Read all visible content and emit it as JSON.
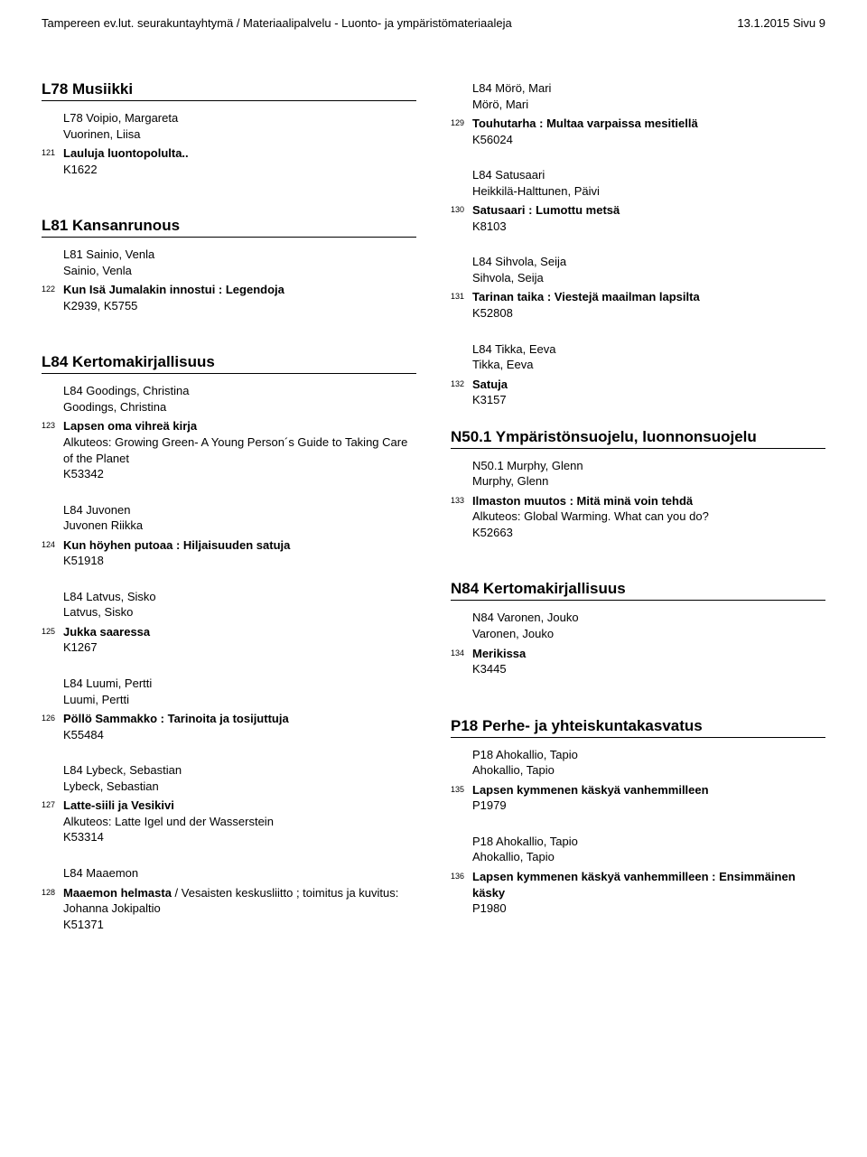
{
  "header": {
    "left": "Tampereen ev.lut. seurakuntayhtymä / Materiaalipalvelu - Luonto- ja ympäristömateriaaleja",
    "right": "13.1.2015  Sivu 9"
  },
  "left_col": [
    {
      "type": "heading",
      "text": "L78  Musiikki"
    },
    {
      "type": "lines",
      "lines": [
        "L78 Voipio, Margareta",
        "Vuorinen, Liisa"
      ]
    },
    {
      "type": "numbered",
      "num": "121",
      "title": "Lauluja luontopolulta..",
      "after": [
        "K1622"
      ]
    },
    {
      "type": "gap"
    },
    {
      "type": "heading",
      "text": "L81  Kansanrunous"
    },
    {
      "type": "lines",
      "lines": [
        "L81 Sainio, Venla",
        "Sainio, Venla"
      ]
    },
    {
      "type": "numbered",
      "num": "122",
      "title": "Kun Isä Jumalakin innostui : Legendoja",
      "after": [
        "K2939, K5755"
      ]
    },
    {
      "type": "gap"
    },
    {
      "type": "heading",
      "text": "L84  Kertomakirjallisuus"
    },
    {
      "type": "lines",
      "lines": [
        "L84 Goodings, Christina",
        "Goodings, Christina"
      ]
    },
    {
      "type": "numbered",
      "num": "123",
      "title": "Lapsen oma vihreä kirja",
      "after": [
        "Alkuteos: Growing Green- A Young Person´s Guide to Taking Care of the Planet",
        "K53342"
      ]
    },
    {
      "type": "gap"
    },
    {
      "type": "lines",
      "lines": [
        "L84 Juvonen",
        "Juvonen Riikka"
      ]
    },
    {
      "type": "numbered",
      "num": "124",
      "title": "Kun höyhen putoaa : Hiljaisuuden satuja",
      "after": [
        "K51918"
      ]
    },
    {
      "type": "gap"
    },
    {
      "type": "lines",
      "lines": [
        "L84 Latvus, Sisko",
        "Latvus, Sisko"
      ]
    },
    {
      "type": "numbered",
      "num": "125",
      "title": "Jukka saaressa",
      "after": [
        "K1267"
      ]
    },
    {
      "type": "gap"
    },
    {
      "type": "lines",
      "lines": [
        "L84 Luumi, Pertti",
        "Luumi, Pertti"
      ]
    },
    {
      "type": "numbered",
      "num": "126",
      "title": "Pöllö Sammakko : Tarinoita ja tosijuttuja",
      "after": [
        "K55484"
      ]
    },
    {
      "type": "gap"
    },
    {
      "type": "lines",
      "lines": [
        "L84 Lybeck, Sebastian",
        "Lybeck, Sebastian"
      ]
    },
    {
      "type": "numbered",
      "num": "127",
      "title": "Latte-siili ja Vesikivi",
      "after": [
        "Alkuteos: Latte Igel und der Wasserstein",
        "K53314"
      ]
    },
    {
      "type": "gap"
    },
    {
      "type": "lines",
      "lines": [
        "L84 Maaemon"
      ]
    },
    {
      "type": "numbered",
      "num": "128",
      "title_html": "<b>Maaemon helmasta</b> / Vesaisten keskusliitto ; toimitus ja kuvitus: Johanna Jokipaltio",
      "after": [
        "K51371"
      ]
    }
  ],
  "right_col": [
    {
      "type": "lines",
      "lines": [
        "L84 Mörö, Mari",
        "Mörö, Mari"
      ]
    },
    {
      "type": "numbered",
      "num": "129",
      "title": "Touhutarha : Multaa varpaissa mesitiellä",
      "after": [
        "K56024"
      ]
    },
    {
      "type": "gap"
    },
    {
      "type": "lines",
      "lines": [
        "L84 Satusaari",
        "Heikkilä-Halttunen, Päivi"
      ]
    },
    {
      "type": "numbered",
      "num": "130",
      "title": "Satusaari : Lumottu metsä",
      "after": [
        "K8103"
      ]
    },
    {
      "type": "gap"
    },
    {
      "type": "lines",
      "lines": [
        "L84 Sihvola, Seija",
        "Sihvola, Seija"
      ]
    },
    {
      "type": "numbered",
      "num": "131",
      "title": "Tarinan taika : Viestejä maailman lapsilta",
      "after": [
        "K52808"
      ]
    },
    {
      "type": "gap"
    },
    {
      "type": "lines",
      "lines": [
        "L84 Tikka, Eeva",
        "Tikka, Eeva"
      ]
    },
    {
      "type": "numbered",
      "num": "132",
      "title": "Satuja",
      "after": [
        "K3157"
      ]
    },
    {
      "type": "gap"
    },
    {
      "type": "heading",
      "text": "N50.1 Ympäristönsuojelu, luonnonsuojelu"
    },
    {
      "type": "lines",
      "lines": [
        "N50.1 Murphy, Glenn",
        "Murphy, Glenn"
      ]
    },
    {
      "type": "numbered",
      "num": "133",
      "title": "Ilmaston muutos : Mitä minä voin tehdä",
      "after": [
        "Alkuteos: Global Warming. What can you do?",
        "K52663"
      ]
    },
    {
      "type": "gap"
    },
    {
      "type": "heading",
      "text": "N84  Kertomakirjallisuus"
    },
    {
      "type": "lines",
      "lines": [
        "N84 Varonen, Jouko",
        "Varonen, Jouko"
      ]
    },
    {
      "type": "numbered",
      "num": "134",
      "title": "Merikissa",
      "after": [
        "K3445"
      ]
    },
    {
      "type": "gap"
    },
    {
      "type": "heading",
      "text": "P18  Perhe- ja yhteiskuntakasvatus"
    },
    {
      "type": "lines",
      "lines": [
        "P18 Ahokallio, Tapio",
        "Ahokallio, Tapio"
      ]
    },
    {
      "type": "numbered",
      "num": "135",
      "title": "Lapsen kymmenen käskyä vanhemmilleen",
      "after": [
        "P1979"
      ]
    },
    {
      "type": "gap"
    },
    {
      "type": "lines",
      "lines": [
        "P18 Ahokallio, Tapio",
        "Ahokallio, Tapio"
      ]
    },
    {
      "type": "numbered",
      "num": "136",
      "title": "Lapsen kymmenen käskyä vanhemmilleen : Ensimmäinen käsky",
      "after": [
        "P1980"
      ]
    }
  ]
}
